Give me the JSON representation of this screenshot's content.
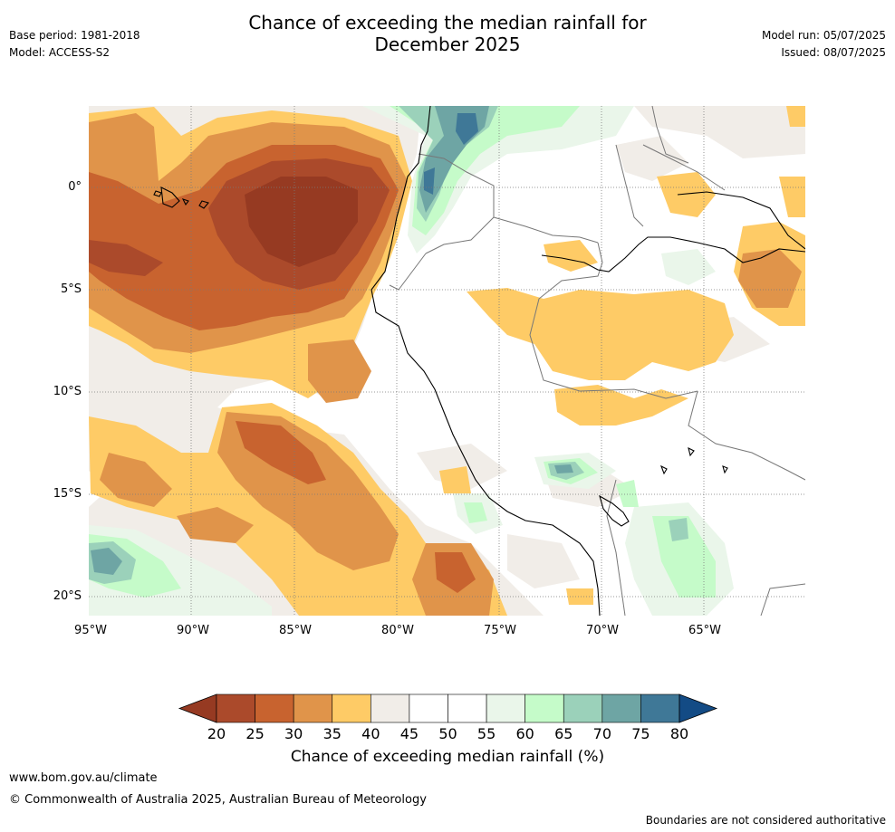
{
  "header": {
    "title_line1": "Chance of exceeding the median rainfall for",
    "title_line2": "December 2025",
    "base_period": "Base period: 1981-2018",
    "model": "Model: ACCESS-S2",
    "model_run": "Model run: 05/07/2025",
    "issued": "Issued: 08/07/2025"
  },
  "map": {
    "lat_ticks": [
      "0°",
      "5°S",
      "10°S",
      "15°S",
      "20°S"
    ],
    "lon_ticks": [
      "95°W",
      "90°W",
      "85°W",
      "80°W",
      "75°W",
      "70°W",
      "65°W"
    ],
    "colors": {
      "c20_25": "#ab4a2b",
      "c25_30": "#c8632f",
      "c30_35": "#e0944a",
      "c35_40": "#fecb66",
      "c40_45": "#f1ede8",
      "c45_55": "#ffffff",
      "c55_60": "#eaf6ea",
      "c60_65": "#c5fbc9",
      "c65_70": "#9bd1ba",
      "c70_75": "#6ea5a4",
      "c75_80": "#3f7897",
      "under20": "#963a22",
      "over80": "#134b85",
      "coast": "#000000",
      "border": "#777777"
    }
  },
  "colorbar": {
    "labels": [
      "20",
      "25",
      "30",
      "35",
      "40",
      "45",
      "50",
      "55",
      "60",
      "65",
      "70",
      "75",
      "80"
    ],
    "segment_colors": [
      "#ab4a2b",
      "#c8632f",
      "#e0944a",
      "#fecb66",
      "#f1ede8",
      "#ffffff",
      "#ffffff",
      "#eaf6ea",
      "#c5fbc9",
      "#9bd1ba",
      "#6ea5a4",
      "#3f7897"
    ],
    "under_color": "#963a22",
    "over_color": "#134b85",
    "title": "Chance of exceeding median rainfall (%)"
  },
  "footer": {
    "url": "www.bom.gov.au/climate",
    "copyright": "© Commonwealth of Australia 2025, Australian Bureau of Meteorology",
    "disclaimer": "Boundaries are not considered authoritative"
  }
}
